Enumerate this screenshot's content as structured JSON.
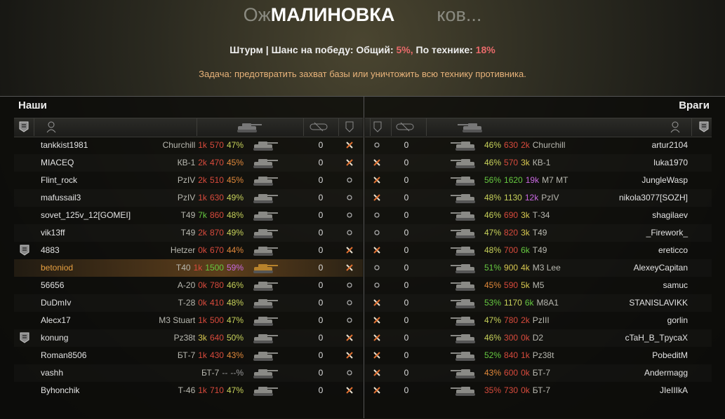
{
  "header": {
    "map_name": "МАЛИНОВКА",
    "loading_left": "Ож",
    "loading_right": "ков...",
    "mode": "Штурм",
    "separator": "|",
    "chance_label": "Шанс на победу: Общий:",
    "chance_total": "5%,",
    "chance_tech_label": "По технике:",
    "chance_tech": "18%",
    "task": "Задача: предотвратить захват базы или уничтожить всю технику противника."
  },
  "teams": [
    {
      "title": "Наши",
      "rows": [
        {
          "name": "tankkist1981",
          "tank": "Churchill",
          "stats": [
            {
              "text": "1k",
              "color": "#d84a3c"
            },
            {
              "text": "570",
              "color": "#d84a3c"
            },
            {
              "text": "47%",
              "color": "#c8d25a"
            }
          ],
          "frags": "0",
          "status": "dead"
        },
        {
          "name": "MIACEQ",
          "tank": "КВ-1",
          "stats": [
            {
              "text": "2k",
              "color": "#d84a3c"
            },
            {
              "text": "470",
              "color": "#d84a3c"
            },
            {
              "text": "45%",
              "color": "#e0883a"
            }
          ],
          "frags": "0",
          "status": "dead"
        },
        {
          "name": "Flint_rock",
          "tank": "PzIV",
          "stats": [
            {
              "text": "2k",
              "color": "#d84a3c"
            },
            {
              "text": "510",
              "color": "#d84a3c"
            },
            {
              "text": "45%",
              "color": "#e0883a"
            }
          ],
          "frags": "0",
          "status": "alive"
        },
        {
          "name": "mafussail3",
          "tank": "PzIV",
          "stats": [
            {
              "text": "1k",
              "color": "#d84a3c"
            },
            {
              "text": "630",
              "color": "#d84a3c"
            },
            {
              "text": "49%",
              "color": "#c8d25a"
            }
          ],
          "frags": "0",
          "status": "alive"
        },
        {
          "name": "sovet_125v_12[GOMEI]",
          "tank": "T49",
          "stats": [
            {
              "text": "7k",
              "color": "#66c840"
            },
            {
              "text": "860",
              "color": "#d84a3c"
            },
            {
              "text": "48%",
              "color": "#c8d25a"
            }
          ],
          "frags": "0",
          "status": "alive"
        },
        {
          "name": "vik13ff",
          "tank": "T49",
          "stats": [
            {
              "text": "2k",
              "color": "#d84a3c"
            },
            {
              "text": "870",
              "color": "#d84a3c"
            },
            {
              "text": "49%",
              "color": "#c8d25a"
            }
          ],
          "frags": "0",
          "status": "alive"
        },
        {
          "name": "4883",
          "tank": "Hetzer",
          "stats": [
            {
              "text": "0k",
              "color": "#d84a3c"
            },
            {
              "text": "670",
              "color": "#d84a3c"
            },
            {
              "text": "44%",
              "color": "#e0883a"
            }
          ],
          "frags": "0",
          "status": "dead",
          "platoon": true
        },
        {
          "name": "betoniod",
          "tank": "T40",
          "stats": [
            {
              "text": "1k",
              "color": "#d84a3c"
            },
            {
              "text": "1500",
              "color": "#66c840"
            },
            {
              "text": "59%",
              "color": "#c868e0"
            }
          ],
          "frags": "0",
          "status": "dead",
          "player": true
        },
        {
          "name": "56656",
          "tank": "А-20",
          "stats": [
            {
              "text": "0k",
              "color": "#d84a3c"
            },
            {
              "text": "780",
              "color": "#d84a3c"
            },
            {
              "text": "46%",
              "color": "#c8d25a"
            }
          ],
          "frags": "0",
          "status": "alive"
        },
        {
          "name": "DuDmIv",
          "tank": "Т-28",
          "stats": [
            {
              "text": "0k",
              "color": "#d84a3c"
            },
            {
              "text": "410",
              "color": "#d84a3c"
            },
            {
              "text": "48%",
              "color": "#c8d25a"
            }
          ],
          "frags": "0",
          "status": "alive"
        },
        {
          "name": "Alecx17",
          "tank": "M3 Stuart",
          "stats": [
            {
              "text": "1k",
              "color": "#d84a3c"
            },
            {
              "text": "500",
              "color": "#d84a3c"
            },
            {
              "text": "47%",
              "color": "#c8d25a"
            }
          ],
          "frags": "0",
          "status": "alive"
        },
        {
          "name": "konung",
          "tank": "Pz38t",
          "stats": [
            {
              "text": "3k",
              "color": "#d8c850"
            },
            {
              "text": "640",
              "color": "#d84a3c"
            },
            {
              "text": "50%",
              "color": "#c8d25a"
            }
          ],
          "frags": "0",
          "status": "dead",
          "platoon": true
        },
        {
          "name": "Roman8506",
          "tank": "БТ-7",
          "stats": [
            {
              "text": "1k",
              "color": "#d84a3c"
            },
            {
              "text": "430",
              "color": "#d84a3c"
            },
            {
              "text": "43%",
              "color": "#e0883a"
            }
          ],
          "frags": "0",
          "status": "dead"
        },
        {
          "name": "vashh",
          "tank": "БТ-7",
          "stats": [
            {
              "text": "--",
              "color": "#9a9a9a"
            },
            {
              "text": "--%",
              "color": "#9a9a9a"
            }
          ],
          "frags": "0",
          "status": "alive"
        },
        {
          "name": "Byhonchik",
          "tank": "Т-46",
          "stats": [
            {
              "text": "1k",
              "color": "#d84a3c"
            },
            {
              "text": "710",
              "color": "#d84a3c"
            },
            {
              "text": "47%",
              "color": "#c8d25a"
            }
          ],
          "frags": "0",
          "status": "dead"
        }
      ]
    },
    {
      "title": "Враги",
      "rows": [
        {
          "name": "artur2104",
          "tank": "Churchill",
          "stats": [
            {
              "text": "46%",
              "color": "#c8d25a"
            },
            {
              "text": "630",
              "color": "#d84a3c"
            },
            {
              "text": "2k",
              "color": "#d84a3c"
            }
          ],
          "frags": "0",
          "status": "alive"
        },
        {
          "name": "luka1970",
          "tank": "КВ-1",
          "stats": [
            {
              "text": "46%",
              "color": "#c8d25a"
            },
            {
              "text": "570",
              "color": "#d84a3c"
            },
            {
              "text": "3k",
              "color": "#d8c850"
            }
          ],
          "frags": "0",
          "status": "dead"
        },
        {
          "name": "JungleWasp",
          "tank": "M7 MT",
          "stats": [
            {
              "text": "56%",
              "color": "#66c840"
            },
            {
              "text": "1620",
              "color": "#66c840"
            },
            {
              "text": "19k",
              "color": "#c868e0"
            }
          ],
          "frags": "0",
          "status": "dead"
        },
        {
          "name": "nikola3077[SOZH]",
          "tank": "PzIV",
          "stats": [
            {
              "text": "48%",
              "color": "#c8d25a"
            },
            {
              "text": "1130",
              "color": "#c8d25a"
            },
            {
              "text": "12k",
              "color": "#c868e0"
            }
          ],
          "frags": "0",
          "status": "dead"
        },
        {
          "name": "shagilaev",
          "tank": "Т-34",
          "stats": [
            {
              "text": "46%",
              "color": "#c8d25a"
            },
            {
              "text": "690",
              "color": "#d84a3c"
            },
            {
              "text": "3k",
              "color": "#d8c850"
            }
          ],
          "frags": "0",
          "status": "alive"
        },
        {
          "name": "_Firework_",
          "tank": "T49",
          "stats": [
            {
              "text": "47%",
              "color": "#c8d25a"
            },
            {
              "text": "820",
              "color": "#d84a3c"
            },
            {
              "text": "3k",
              "color": "#d8c850"
            }
          ],
          "frags": "0",
          "status": "alive"
        },
        {
          "name": "ereticco",
          "tank": "T49",
          "stats": [
            {
              "text": "48%",
              "color": "#c8d25a"
            },
            {
              "text": "700",
              "color": "#d84a3c"
            },
            {
              "text": "6k",
              "color": "#66c840"
            }
          ],
          "frags": "0",
          "status": "dead"
        },
        {
          "name": "AlexeyCapitan",
          "tank": "M3 Lee",
          "stats": [
            {
              "text": "51%",
              "color": "#66c840"
            },
            {
              "text": "900",
              "color": "#d8c850"
            },
            {
              "text": "4k",
              "color": "#d8c850"
            }
          ],
          "frags": "0",
          "status": "alive"
        },
        {
          "name": "samuc",
          "tank": "M5",
          "stats": [
            {
              "text": "45%",
              "color": "#e0883a"
            },
            {
              "text": "590",
              "color": "#d84a3c"
            },
            {
              "text": "5k",
              "color": "#d8c850"
            }
          ],
          "frags": "0",
          "status": "alive"
        },
        {
          "name": "STANISLAVIKK",
          "tank": "M8A1",
          "stats": [
            {
              "text": "53%",
              "color": "#66c840"
            },
            {
              "text": "1170",
              "color": "#c8d25a"
            },
            {
              "text": "6k",
              "color": "#66c840"
            }
          ],
          "frags": "0",
          "status": "dead"
        },
        {
          "name": "gorlin",
          "tank": "PzIII",
          "stats": [
            {
              "text": "47%",
              "color": "#c8d25a"
            },
            {
              "text": "780",
              "color": "#d84a3c"
            },
            {
              "text": "2k",
              "color": "#d84a3c"
            }
          ],
          "frags": "0",
          "status": "dead"
        },
        {
          "name": "cTaH_B_TpycaX",
          "tank": "D2",
          "stats": [
            {
              "text": "46%",
              "color": "#c8d25a"
            },
            {
              "text": "300",
              "color": "#d84a3c"
            },
            {
              "text": "0k",
              "color": "#d84a3c"
            }
          ],
          "frags": "0",
          "status": "dead"
        },
        {
          "name": "PobeditM",
          "tank": "Pz38t",
          "stats": [
            {
              "text": "52%",
              "color": "#66c840"
            },
            {
              "text": "840",
              "color": "#d84a3c"
            },
            {
              "text": "1k",
              "color": "#d84a3c"
            }
          ],
          "frags": "0",
          "status": "dead"
        },
        {
          "name": "Andermagg",
          "tank": "БТ-7",
          "stats": [
            {
              "text": "43%",
              "color": "#e0883a"
            },
            {
              "text": "600",
              "color": "#d84a3c"
            },
            {
              "text": "0k",
              "color": "#d84a3c"
            }
          ],
          "frags": "0",
          "status": "dead"
        },
        {
          "name": "JIeIIIkA",
          "tank": "БТ-7",
          "stats": [
            {
              "text": "35%",
              "color": "#d84a3c"
            },
            {
              "text": "730",
              "color": "#d84a3c"
            },
            {
              "text": "0k",
              "color": "#d84a3c"
            }
          ],
          "frags": "0",
          "status": "dead"
        }
      ]
    }
  ]
}
